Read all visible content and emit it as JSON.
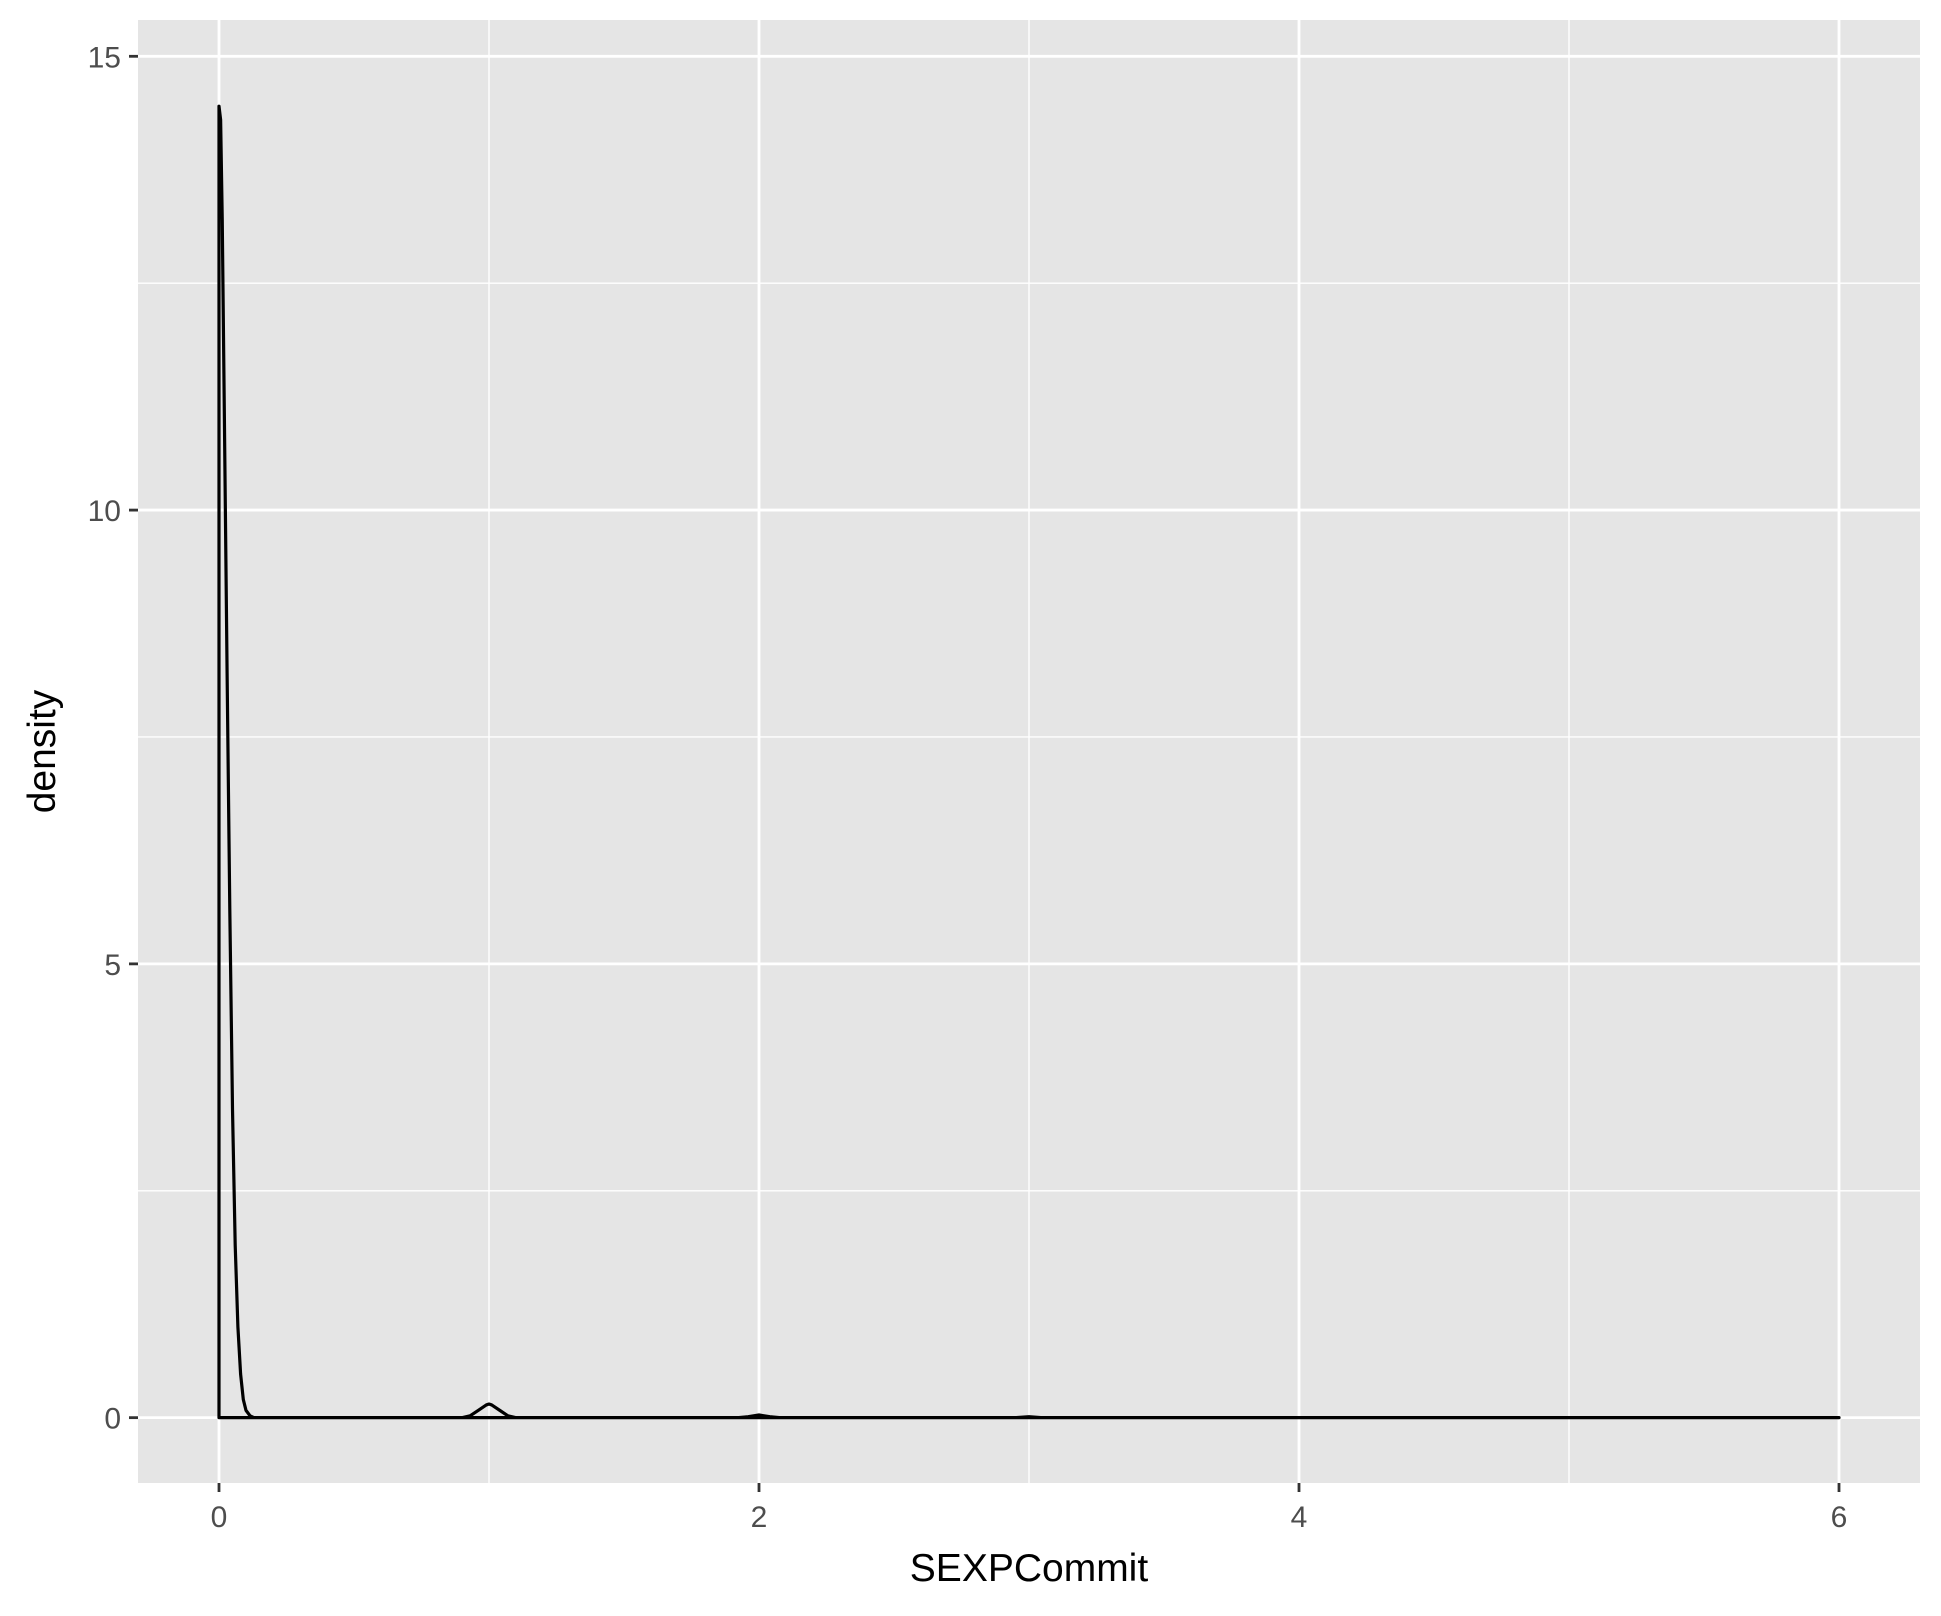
{
  "chart_data": {
    "type": "area",
    "title": "",
    "xlabel": "SEXPCommit",
    "ylabel": "density",
    "xlim": [
      -0.3,
      6.3
    ],
    "ylim": [
      -0.72,
      15.4
    ],
    "x_ticks": [
      0,
      2,
      4,
      6
    ],
    "x_tick_labels": [
      "0",
      "2",
      "4",
      "6"
    ],
    "y_ticks": [
      0,
      5,
      10,
      15
    ],
    "y_tick_labels": [
      "0",
      "5",
      "10",
      "15"
    ],
    "x_minor_ticks": [
      1,
      3,
      5
    ],
    "y_minor_ticks": [
      2.5,
      7.5,
      12.5
    ],
    "grid": true,
    "legend": "none",
    "colors": {
      "panel_background": "#e5e5e5",
      "grid": "#ffffff",
      "line": "#000000",
      "fill": "none",
      "tick_label": "#4d4d4d",
      "axis_title": "#000000"
    },
    "series": [
      {
        "x": [
          0.0,
          0.006,
          0.012,
          0.02,
          0.03,
          0.04,
          0.05,
          0.06,
          0.07,
          0.08,
          0.09,
          0.1,
          0.115,
          0.13,
          0.16,
          0.3,
          0.6,
          0.9,
          0.93,
          0.96,
          0.99,
          1.0,
          1.01,
          1.04,
          1.07,
          1.1,
          1.4,
          1.7,
          1.92,
          1.96,
          2.0,
          2.04,
          2.08,
          2.4,
          2.8,
          2.95,
          3.0,
          3.05,
          3.5,
          4.0,
          4.5,
          5.0,
          5.5,
          6.0
        ],
        "y": [
          14.45,
          14.3,
          13.2,
          11.0,
          8.2,
          5.6,
          3.4,
          1.9,
          1.0,
          0.48,
          0.2,
          0.08,
          0.02,
          0.0,
          0.0,
          0.0,
          0.0,
          0.0,
          0.02,
          0.08,
          0.14,
          0.15,
          0.14,
          0.08,
          0.02,
          0.0,
          0.0,
          0.0,
          0.0,
          0.01,
          0.03,
          0.01,
          0.0,
          0.0,
          0.0,
          0.0,
          0.01,
          0.0,
          0.0,
          0.0,
          0.0,
          0.0,
          0.0,
          0.0
        ]
      }
    ]
  }
}
